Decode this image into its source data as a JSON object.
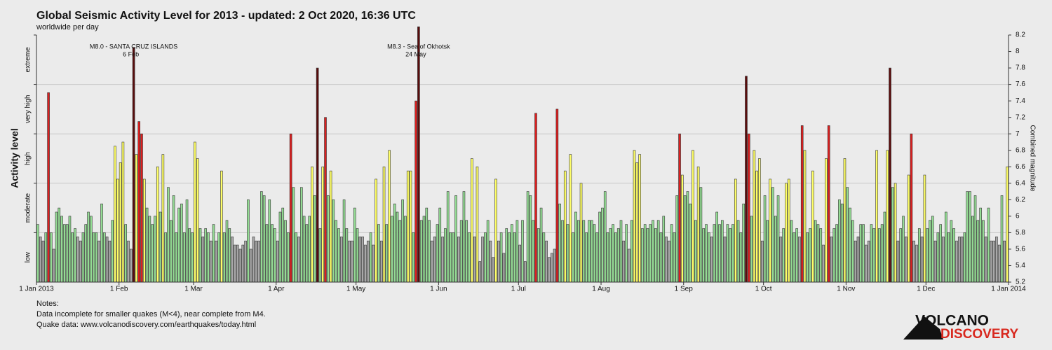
{
  "chart_data": {
    "type": "bar",
    "title": "Global Seismic Activity Level for 2013 - updated:  2 Oct 2020, 16:36 UTC",
    "subtitle": "worldwide per day",
    "ylabel": "Activity level",
    "y2label": "Combined magnitude",
    "xlim": [
      0,
      365
    ],
    "xticks": [
      {
        "value": 0,
        "label": "1 Jan 2013"
      },
      {
        "value": 31,
        "label": "1 Feb"
      },
      {
        "value": 59,
        "label": "1 Mar"
      },
      {
        "value": 90,
        "label": "1 Apr"
      },
      {
        "value": 120,
        "label": "1 May"
      },
      {
        "value": 151,
        "label": "1 Jun"
      },
      {
        "value": 181,
        "label": "1 Jul"
      },
      {
        "value": 212,
        "label": "1 Aug"
      },
      {
        "value": 243,
        "label": "1 Sep"
      },
      {
        "value": 273,
        "label": "1 Oct"
      },
      {
        "value": 304,
        "label": "1 Nov"
      },
      {
        "value": 334,
        "label": "1 Dec"
      },
      {
        "value": 365,
        "label": "1 Jan 2014"
      }
    ],
    "ylim": [
      5.2,
      8.2
    ],
    "yticks": [
      5.2,
      5.4,
      5.6,
      5.8,
      6,
      6.2,
      6.4,
      6.6,
      6.8,
      7,
      7.2,
      7.4,
      7.6,
      7.8,
      8,
      8.2
    ],
    "bands": [
      {
        "label": "low",
        "range": [
          5.2,
          5.8
        ],
        "color": "#a9a9a9"
      },
      {
        "label": "moderate",
        "range": [
          5.8,
          6.4
        ],
        "color": "#94dc94"
      },
      {
        "label": "high",
        "range": [
          6.4,
          7.0
        ],
        "color": "#ffff66"
      },
      {
        "label": "very high",
        "range": [
          7.0,
          7.6
        ],
        "color": "#dd1f1f"
      },
      {
        "label": "extreme",
        "range": [
          7.6,
          8.2
        ],
        "color": "#5a0c0c"
      }
    ],
    "grid": true,
    "values": [
      5.9,
      5.75,
      5.7,
      5.8,
      7.5,
      5.8,
      5.6,
      6.05,
      6.1,
      6.0,
      5.9,
      5.9,
      6.0,
      5.8,
      5.85,
      5.75,
      5.7,
      5.8,
      5.9,
      6.05,
      6.0,
      5.8,
      5.8,
      5.7,
      6.15,
      5.8,
      5.75,
      5.7,
      5.95,
      6.85,
      6.45,
      6.65,
      6.9,
      5.9,
      5.7,
      5.6,
      8.05,
      6.75,
      7.15,
      7.0,
      6.45,
      6.1,
      6.0,
      5.9,
      6.0,
      6.6,
      6.05,
      6.75,
      5.8,
      6.35,
      5.95,
      6.25,
      5.8,
      6.1,
      6.15,
      5.8,
      6.2,
      5.85,
      5.8,
      6.9,
      6.7,
      5.85,
      5.75,
      5.85,
      5.8,
      5.7,
      5.9,
      5.7,
      5.8,
      6.55,
      5.8,
      5.95,
      5.85,
      5.75,
      5.65,
      5.65,
      5.6,
      5.65,
      5.7,
      6.2,
      5.6,
      5.75,
      5.7,
      5.7,
      6.3,
      6.25,
      5.9,
      6.2,
      5.9,
      5.85,
      5.7,
      6.05,
      6.1,
      5.95,
      5.8,
      7.0,
      6.35,
      5.8,
      5.75,
      6.35,
      6.0,
      5.9,
      6.0,
      6.6,
      6.25,
      7.8,
      5.85,
      6.6,
      7.2,
      6.25,
      6.55,
      6.2,
      5.95,
      5.85,
      5.75,
      6.2,
      5.85,
      5.7,
      5.7,
      6.1,
      5.85,
      5.75,
      5.75,
      5.65,
      5.7,
      5.8,
      5.65,
      6.45,
      5.9,
      5.7,
      6.6,
      5.9,
      6.8,
      6.0,
      6.15,
      6.05,
      5.95,
      6.2,
      6.0,
      6.55,
      6.55,
      5.8,
      7.4,
      8.3,
      5.95,
      6.0,
      6.1,
      5.95,
      5.7,
      5.75,
      5.9,
      6.1,
      5.75,
      5.85,
      6.3,
      5.8,
      5.8,
      6.25,
      5.75,
      5.95,
      6.3,
      5.95,
      5.8,
      6.7,
      5.75,
      6.6,
      5.45,
      5.75,
      5.8,
      5.95,
      5.7,
      5.5,
      6.45,
      5.7,
      5.8,
      5.55,
      5.85,
      5.8,
      5.9,
      5.8,
      5.95,
      5.65,
      5.95,
      5.45,
      6.3,
      6.25,
      5.95,
      7.25,
      5.85,
      6.1,
      5.8,
      5.7,
      5.5,
      5.55,
      5.6,
      7.3,
      6.15,
      5.95,
      6.55,
      5.9,
      6.75,
      5.8,
      6.05,
      5.95,
      6.4,
      5.95,
      5.8,
      5.95,
      5.95,
      5.9,
      5.8,
      6.05,
      6.1,
      6.3,
      5.8,
      5.85,
      5.9,
      5.8,
      5.85,
      5.95,
      5.7,
      5.9,
      5.6,
      5.95,
      6.8,
      6.65,
      6.75,
      5.85,
      5.9,
      5.85,
      5.9,
      5.95,
      5.85,
      5.95,
      5.8,
      6.0,
      5.75,
      5.7,
      5.9,
      5.8,
      6.25,
      7.0,
      6.5,
      6.25,
      6.3,
      6.15,
      6.8,
      5.95,
      6.6,
      6.35,
      5.85,
      5.9,
      5.8,
      5.75,
      5.9,
      6.05,
      5.9,
      5.95,
      5.75,
      5.9,
      5.85,
      5.9,
      6.45,
      5.95,
      5.8,
      6.15,
      7.7,
      7.0,
      6.0,
      6.8,
      6.55,
      6.7,
      5.7,
      6.25,
      5.95,
      6.45,
      6.35,
      6.0,
      6.25,
      5.75,
      5.85,
      6.4,
      6.45,
      5.95,
      5.8,
      5.85,
      5.75,
      7.1,
      6.8,
      5.8,
      5.85,
      6.55,
      5.95,
      5.9,
      5.85,
      5.65,
      6.7,
      7.1,
      5.75,
      5.85,
      5.9,
      6.2,
      6.15,
      6.7,
      6.35,
      6.1,
      5.95,
      5.7,
      5.75,
      5.9,
      5.9,
      5.65,
      5.7,
      5.9,
      5.85,
      6.8,
      5.85,
      5.9,
      6.05,
      6.8,
      7.8,
      6.35,
      6.4,
      5.7,
      5.85,
      6.0,
      5.75,
      6.5,
      7.0,
      5.7,
      5.65,
      5.85,
      5.75,
      6.5,
      5.85,
      5.95,
      6.0,
      5.7,
      5.8,
      5.9,
      5.75,
      6.05,
      5.8,
      5.95,
      5.85,
      5.7,
      5.75,
      5.75,
      5.8,
      6.3,
      6.3,
      6.0,
      6.25,
      5.95,
      6.1,
      5.95,
      5.75,
      6.1,
      5.7,
      5.7,
      5.75,
      5.65,
      6.25,
      5.7,
      6.6
    ],
    "annotations": [
      {
        "text": "M8.0 - SANTA CRUZ ISLANDS",
        "label": "6 Feb",
        "x": 36
      },
      {
        "text": "M8.3 - Sea of Okhotsk",
        "label": "24 May",
        "x": 143
      }
    ],
    "notes": {
      "title": "Notes:",
      "lines": [
        "Data incomplete for smaller quakes (M<4), near complete from M4.",
        "Quake data: www.volcanodiscovery.com/earthquakes/today.html"
      ]
    },
    "logo": [
      "VOLCANO",
      "DISCOVERY"
    ]
  }
}
